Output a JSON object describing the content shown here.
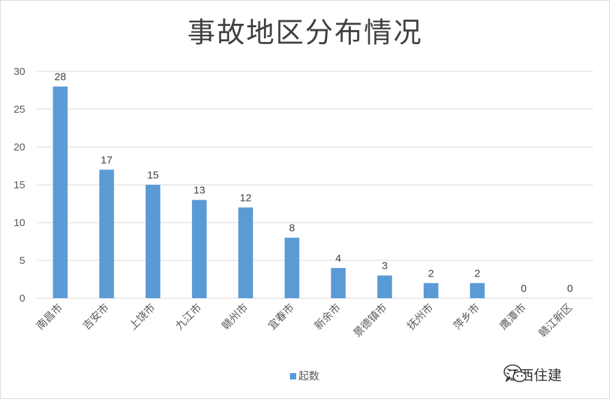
{
  "chart_data": {
    "type": "bar",
    "title": "事故地区分布情况",
    "categories": [
      "南昌市",
      "吉安市",
      "上饶市",
      "九江市",
      "赣州市",
      "宜春市",
      "新余市",
      "景德镇市",
      "抚州市",
      "萍乡市",
      "鹰潭市",
      "赣江新区"
    ],
    "series": [
      {
        "name": "起数",
        "values": [
          28,
          17,
          15,
          13,
          12,
          8,
          4,
          3,
          2,
          2,
          0,
          0
        ]
      }
    ],
    "ylim": [
      0,
      30
    ],
    "yticks": [
      0,
      5,
      10,
      15,
      20,
      25,
      30
    ],
    "grid": true,
    "legend": "bottom",
    "data_labels": true,
    "bar_color": "#5b9bd5",
    "grid_color": "#d9d9d9"
  },
  "watermark": {
    "text": "江西住建",
    "icon": "wechat-icon"
  }
}
